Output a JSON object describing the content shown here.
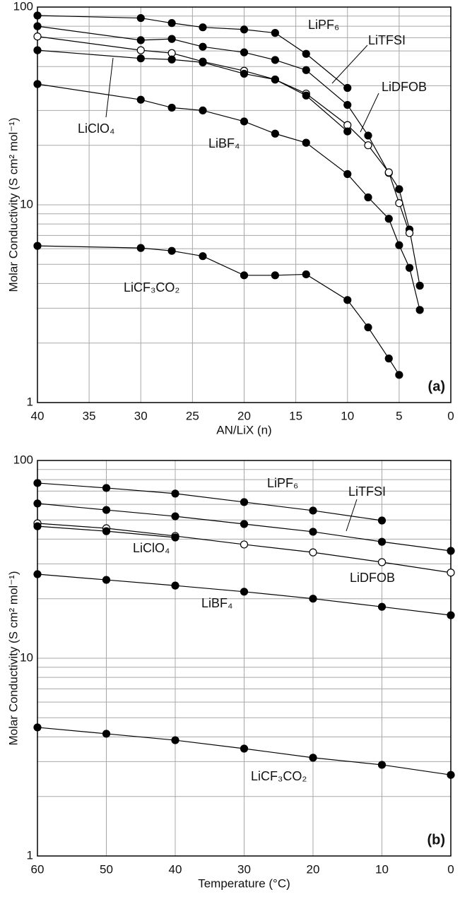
{
  "chart_data": [
    {
      "type": "line",
      "panel_label": "(a)",
      "xlabel": "AN/LiX (n)",
      "ylabel": "Molar Conductivity (S cm² mol⁻¹)",
      "log_y": true,
      "grid": true,
      "xlim": [
        40,
        0
      ],
      "xticks": [
        40,
        35,
        30,
        25,
        20,
        15,
        10,
        5,
        0
      ],
      "ylim": [
        1,
        100
      ],
      "yticks": [
        1,
        10,
        100
      ],
      "yminorticks": [
        2,
        3,
        4,
        5,
        6,
        7,
        8,
        9,
        20,
        30,
        40,
        50,
        60,
        70,
        80,
        90
      ],
      "x": [
        40,
        30,
        27,
        24,
        20,
        17,
        14,
        10,
        8,
        6,
        5,
        4,
        3
      ],
      "series": [
        {
          "name": "LiPF₆",
          "color": "#000000",
          "marker_fill": "#000000",
          "values": [
            90.6,
            88,
            83,
            79,
            77,
            74,
            58,
            39,
            null,
            null,
            null,
            null,
            null
          ]
        },
        {
          "name": "LiTFSI",
          "color": "#000000",
          "marker_fill": "#000000",
          "values": [
            80,
            68,
            69,
            63,
            59,
            54,
            48,
            32,
            22.4,
            14.5,
            12,
            7.5,
            3.9
          ]
        },
        {
          "name": "LiDFOB",
          "color": "#000000",
          "marker_fill": "#ffffff",
          "values": [
            71,
            60.5,
            58.5,
            53,
            47.6,
            43,
            36.5,
            25.3,
            20,
            14.6,
            10.2,
            7.2,
            null
          ]
        },
        {
          "name": "LiClO₄",
          "color": "#000000",
          "marker_fill": "#000000",
          "values": [
            60.5,
            55,
            54.3,
            52.5,
            46,
            43,
            35.7,
            23.5,
            null,
            null,
            null,
            null,
            null
          ]
        },
        {
          "name": "LiBF₄",
          "color": "#000000",
          "marker_fill": "#000000",
          "values": [
            40.8,
            34,
            31,
            30,
            26.4,
            22.9,
            20.6,
            14.3,
            10.9,
            8.5,
            6.25,
            4.8,
            2.94
          ]
        },
        {
          "name": "LiCF₃CO₂",
          "color": "#000000",
          "marker_fill": "#000000",
          "values": [
            6.2,
            6.05,
            5.85,
            5.5,
            4.4,
            4.4,
            4.45,
            3.3,
            2.4,
            1.67,
            1.38,
            null,
            null
          ]
        }
      ]
    },
    {
      "type": "line",
      "panel_label": "(b)",
      "xlabel": "Temperature (°C)",
      "ylabel": "Molar Conductivity (S cm² mol⁻¹)",
      "log_y": true,
      "grid": true,
      "xlim": [
        60,
        0
      ],
      "xticks": [
        60,
        50,
        40,
        30,
        20,
        10,
        0
      ],
      "ylim": [
        1,
        100
      ],
      "yticks": [
        1,
        10,
        100
      ],
      "yminorticks": [
        2,
        3,
        4,
        5,
        6,
        7,
        8,
        9,
        20,
        30,
        40,
        50,
        60,
        70,
        80,
        90
      ],
      "x": [
        60,
        50,
        40,
        30,
        20,
        10,
        0
      ],
      "series": [
        {
          "name": "LiPF₆",
          "color": "#000000",
          "marker_fill": "#000000",
          "values": [
            76.9,
            72.6,
            68,
            61.6,
            55.8,
            49.7,
            null
          ]
        },
        {
          "name": "LiTFSI",
          "color": "#000000",
          "marker_fill": "#000000",
          "values": [
            60.6,
            56.2,
            52.2,
            47.7,
            43.6,
            38.8,
            34.9
          ]
        },
        {
          "name": "LiDFOB",
          "color": "#000000",
          "marker_fill": "#ffffff",
          "values": [
            48.1,
            45.4,
            41.5,
            37.6,
            34.3,
            30.6,
            27.1
          ]
        },
        {
          "name": "LiClO₄",
          "color": "#000000",
          "marker_fill": "#000000",
          "values": [
            46.5,
            43.9,
            40.8,
            null,
            null,
            null,
            null
          ]
        },
        {
          "name": "LiBF₄",
          "color": "#000000",
          "marker_fill": "#000000",
          "values": [
            26.6,
            24.9,
            23.3,
            21.7,
            20,
            18.2,
            16.5
          ]
        },
        {
          "name": "LiCF₃CO₂",
          "color": "#000000",
          "marker_fill": "#000000",
          "values": [
            4.47,
            4.15,
            3.85,
            3.49,
            3.14,
            2.89,
            2.57
          ]
        }
      ]
    }
  ]
}
